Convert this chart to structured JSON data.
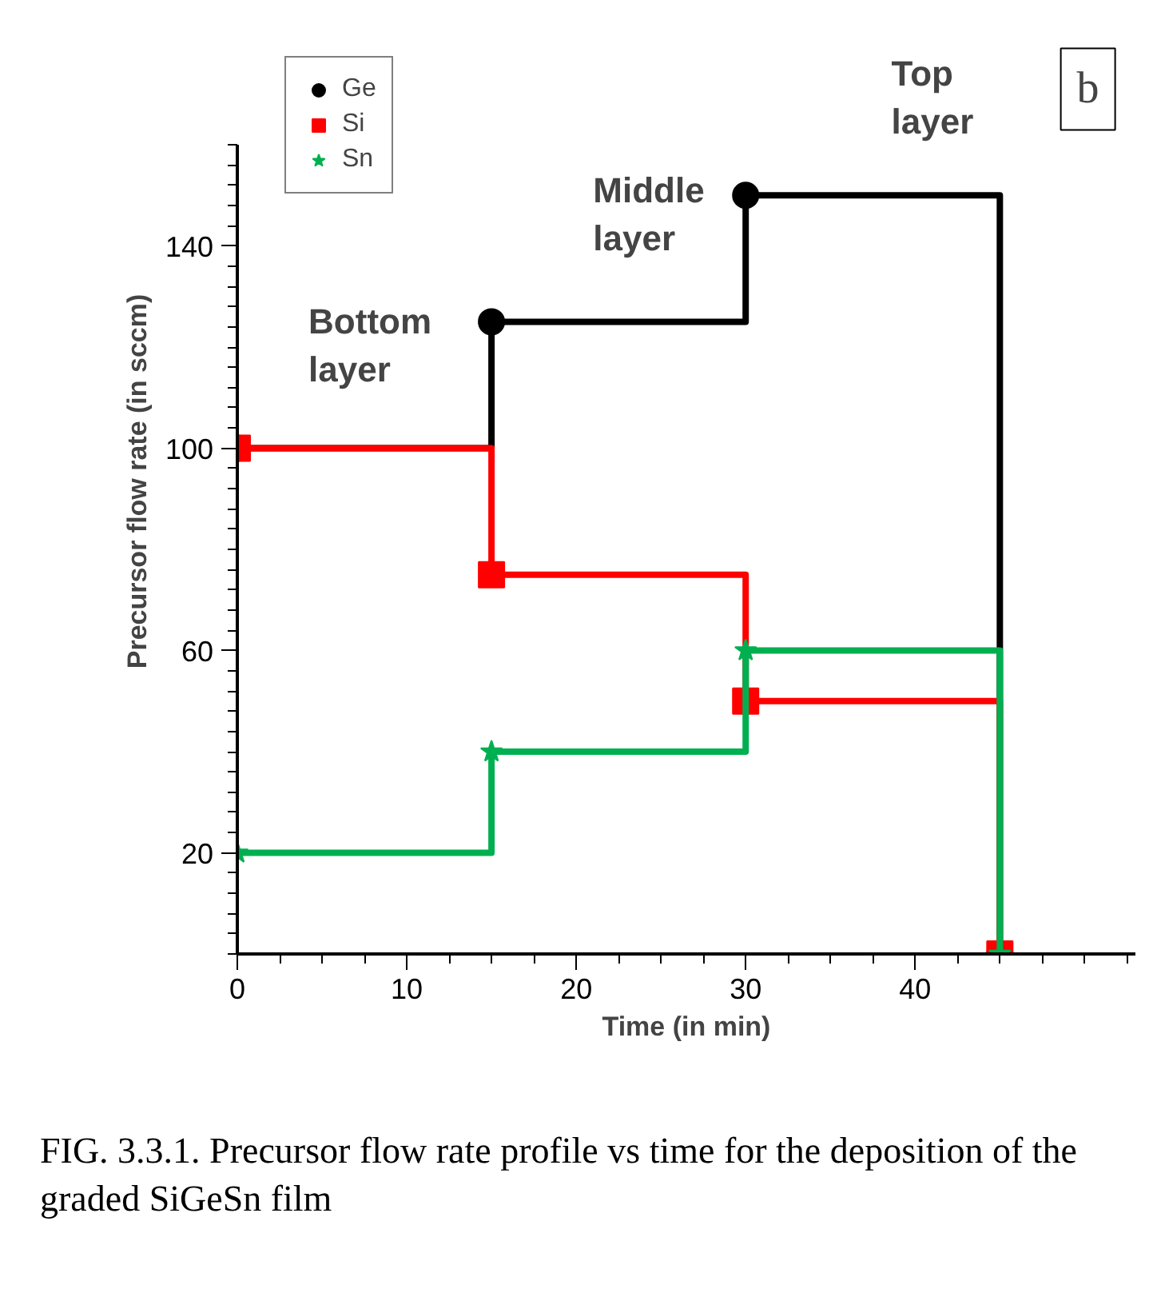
{
  "chart_data": {
    "type": "step",
    "xlabel": "Time (in min)",
    "ylabel": "Precursor flow rate (in sccm)",
    "x": [
      0,
      15,
      30,
      45
    ],
    "series": [
      {
        "name": "Ge",
        "color": "#000000",
        "marker": "circle",
        "values": [
          100,
          125,
          150,
          0
        ]
      },
      {
        "name": "Si",
        "color": "#ff0000",
        "marker": "square",
        "values": [
          100,
          75,
          50,
          0
        ]
      },
      {
        "name": "Sn",
        "color": "#00b050",
        "marker": "star",
        "values": [
          20,
          40,
          60,
          0
        ]
      }
    ],
    "xlim": [
      0,
      53
    ],
    "ylim": [
      0,
      160
    ],
    "xticks": [
      0,
      10,
      20,
      30,
      40
    ],
    "yticks": [
      20,
      60,
      100,
      140
    ],
    "grid": false,
    "legend": "top left",
    "line_style": "solid",
    "annotations": [
      "Bottom layer",
      "Middle layer",
      "Top layer",
      "b",
      "FIG. 3.3.1. Precursor flow rate profile vs time for the deposition of the graded SiGeSn film"
    ]
  }
}
